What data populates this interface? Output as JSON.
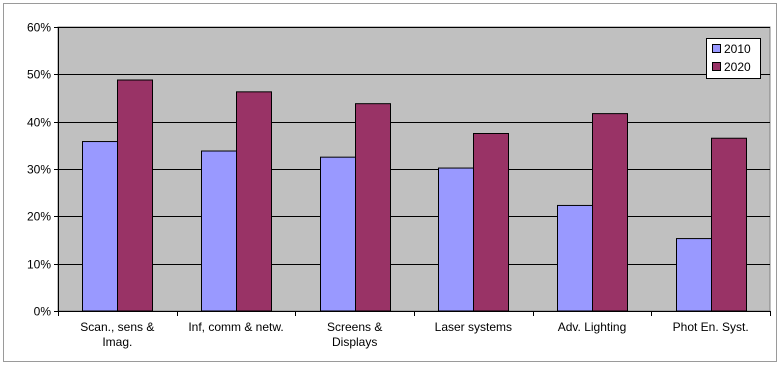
{
  "chart_data": {
    "type": "bar",
    "title": "",
    "xlabel": "",
    "ylabel": "",
    "categories": [
      "Scan., sens & Imag.",
      "Inf, comm & netw.",
      "Screens & Displays",
      "Laser systems",
      "Adv. Lighting",
      "Phot En. Syst."
    ],
    "category_lines": [
      [
        "Scan., sens &",
        "Imag."
      ],
      [
        "Inf, comm & netw."
      ],
      [
        "Screens &",
        "Displays"
      ],
      [
        "Laser systems"
      ],
      [
        "Adv. Lighting"
      ],
      [
        "Phot En. Syst."
      ]
    ],
    "series": [
      {
        "name": "2010",
        "color": "#9999ff",
        "values": [
          35.8,
          33.8,
          32.5,
          30.2,
          22.3,
          15.3
        ]
      },
      {
        "name": "2020",
        "color": "#993366",
        "values": [
          48.8,
          46.3,
          43.8,
          37.5,
          41.7,
          36.5
        ]
      }
    ],
    "ylim": [
      0,
      60
    ],
    "yticks": [
      0,
      10,
      20,
      30,
      40,
      50,
      60
    ],
    "ytick_labels": [
      "0%",
      "10%",
      "20%",
      "30%",
      "40%",
      "50%",
      "60%"
    ],
    "plot_background": "#c0c0c0",
    "grid": true,
    "legend_position": "top-right"
  }
}
